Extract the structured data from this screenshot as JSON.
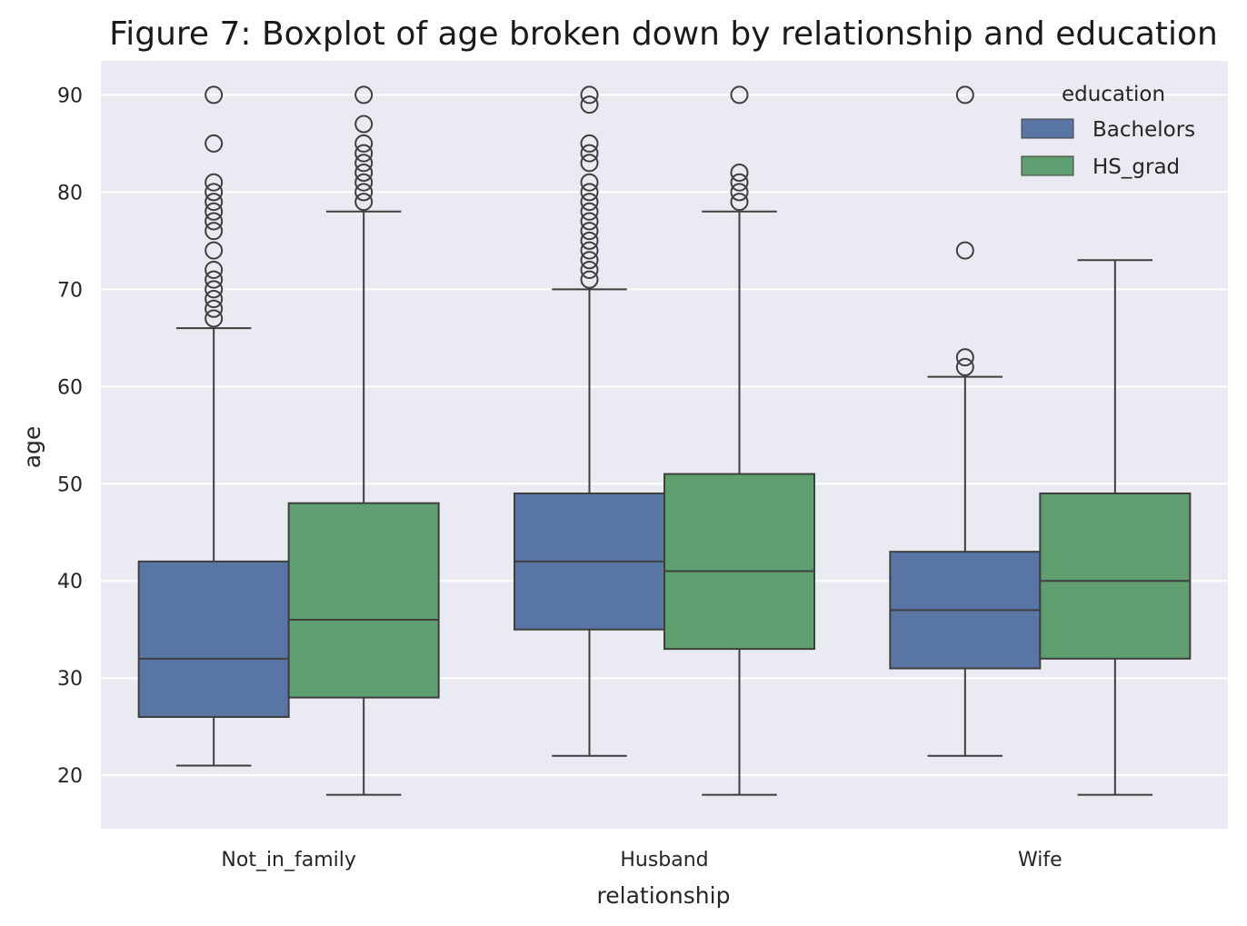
{
  "chart_data": {
    "type": "boxplot",
    "title": "Figure 7: Boxplot of age broken down by relationship and education",
    "xlabel": "relationship",
    "ylabel": "age",
    "ylim": [
      14.5,
      93.5
    ],
    "yticks": [
      20,
      30,
      40,
      50,
      60,
      70,
      80,
      90
    ],
    "grid": true,
    "categories": [
      "Not_in_family",
      "Husband",
      "Wife"
    ],
    "legend": {
      "title": "education",
      "position": "top-right"
    },
    "series": [
      {
        "name": "Bachelors",
        "color": "#5975a4",
        "boxes": [
          {
            "category": "Not_in_family",
            "whisker_low": 21,
            "q1": 26,
            "median": 32,
            "q3": 42,
            "whisker_high": 66,
            "outliers": [
              67,
              68,
              69,
              70,
              71,
              72,
              74,
              76,
              77,
              78,
              79,
              80,
              81,
              85,
              90
            ]
          },
          {
            "category": "Husband",
            "whisker_low": 22,
            "q1": 35,
            "median": 42,
            "q3": 49,
            "whisker_high": 70,
            "outliers": [
              71,
              72,
              73,
              74,
              75,
              76,
              77,
              78,
              79,
              80,
              81,
              83,
              84,
              85,
              89,
              90
            ]
          },
          {
            "category": "Wife",
            "whisker_low": 22,
            "q1": 31,
            "median": 37,
            "q3": 43,
            "whisker_high": 61,
            "outliers": [
              62,
              63,
              74,
              90
            ]
          }
        ]
      },
      {
        "name": "HS_grad",
        "color": "#5f9e6e",
        "boxes": [
          {
            "category": "Not_in_family",
            "whisker_low": 18,
            "q1": 28,
            "median": 36,
            "q3": 48,
            "whisker_high": 78,
            "outliers": [
              79,
              80,
              81,
              82,
              83,
              84,
              85,
              87,
              90
            ]
          },
          {
            "category": "Husband",
            "whisker_low": 18,
            "q1": 33,
            "median": 41,
            "q3": 51,
            "whisker_high": 78,
            "outliers": [
              79,
              80,
              81,
              82,
              90
            ]
          },
          {
            "category": "Wife",
            "whisker_low": 18,
            "q1": 32,
            "median": 40,
            "q3": 49,
            "whisker_high": 73,
            "outliers": []
          }
        ]
      }
    ]
  }
}
